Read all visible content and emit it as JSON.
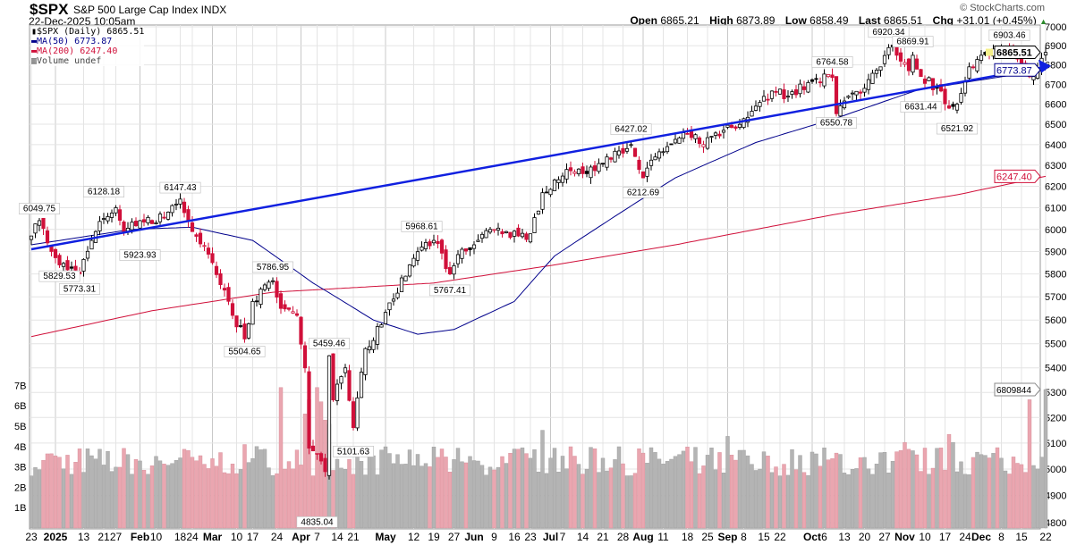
{
  "header": {
    "symbol": "$SPX",
    "name": "S&P 500 Large Cap Index",
    "exchange": "INDX",
    "date": "22-Dec-2025 10:05am",
    "brand": "© StockCharts.com",
    "open_label": "Open",
    "open": "6865.21",
    "high_label": "High",
    "high": "6873.89",
    "low_label": "Low",
    "low": "6858.49",
    "last_label": "Last",
    "last": "6865.51",
    "chg_label": "Chg",
    "chg": "+31.01 (+0.45%)"
  },
  "legend": {
    "price": "$SPX (Daily) 6865.51",
    "ma50": "MA(50) 6773.87",
    "ma200": "MA(200) 6247.40",
    "volume": "Volume undef"
  },
  "colors": {
    "up": "#000000",
    "down": "#d0103a",
    "ma50": "#00008b",
    "ma200": "#d0103a",
    "trend": "#1020e0",
    "vol_up": "#b4b4b4",
    "vol_down": "#eaa6b0"
  },
  "chart_data": {
    "type": "candlestick",
    "title": "$SPX (Daily)",
    "price_ylim": [
      4800,
      7000
    ],
    "price_scale": "log",
    "price_ticks": [
      7000,
      6900,
      6800,
      6700,
      6600,
      6500,
      6400,
      6300,
      6200,
      6100,
      6000,
      5900,
      5800,
      5700,
      5600,
      5500,
      5400,
      5300,
      5200,
      5100,
      5000,
      4900,
      4800
    ],
    "volume_ticks": [
      "1B",
      "2B",
      "3B",
      "4B",
      "5B",
      "6B",
      "7B"
    ],
    "x_ticks": [
      {
        "label": "23",
        "i": 0
      },
      {
        "label": "2025",
        "i": 6,
        "bold": true
      },
      {
        "label": "13",
        "i": 13
      },
      {
        "label": "21",
        "i": 18
      },
      {
        "label": "27",
        "i": 21
      },
      {
        "label": "Feb",
        "i": 27,
        "bold": true
      },
      {
        "label": "10",
        "i": 31
      },
      {
        "label": "18",
        "i": 37
      },
      {
        "label": "24",
        "i": 40
      },
      {
        "label": "Mar",
        "i": 45,
        "bold": true
      },
      {
        "label": "10",
        "i": 51
      },
      {
        "label": "17",
        "i": 55
      },
      {
        "label": "24",
        "i": 61
      },
      {
        "label": "Apr",
        "i": 67,
        "bold": true
      },
      {
        "label": "7",
        "i": 71
      },
      {
        "label": "14",
        "i": 76
      },
      {
        "label": "21",
        "i": 80
      },
      {
        "label": "May",
        "i": 88,
        "bold": true
      },
      {
        "label": "12",
        "i": 95
      },
      {
        "label": "19",
        "i": 100
      },
      {
        "label": "27",
        "i": 105
      },
      {
        "label": "Jun",
        "i": 110,
        "bold": true
      },
      {
        "label": "9",
        "i": 115
      },
      {
        "label": "16",
        "i": 120
      },
      {
        "label": "23",
        "i": 124
      },
      {
        "label": "Jul",
        "i": 129,
        "bold": true
      },
      {
        "label": "7",
        "i": 132
      },
      {
        "label": "14",
        "i": 137
      },
      {
        "label": "21",
        "i": 142
      },
      {
        "label": "28",
        "i": 147
      },
      {
        "label": "Aug",
        "i": 152,
        "bold": true
      },
      {
        "label": "11",
        "i": 157
      },
      {
        "label": "18",
        "i": 163
      },
      {
        "label": "25",
        "i": 168
      },
      {
        "label": "Sep",
        "i": 173,
        "bold": true
      },
      {
        "label": "8",
        "i": 177
      },
      {
        "label": "15",
        "i": 182
      },
      {
        "label": "22",
        "i": 186
      },
      {
        "label": "Oct",
        "i": 194,
        "bold": true
      },
      {
        "label": "6",
        "i": 197
      },
      {
        "label": "13",
        "i": 202
      },
      {
        "label": "20",
        "i": 207
      },
      {
        "label": "27",
        "i": 212
      },
      {
        "label": "Nov",
        "i": 217,
        "bold": true
      },
      {
        "label": "10",
        "i": 222
      },
      {
        "label": "17",
        "i": 227
      },
      {
        "label": "24",
        "i": 232
      },
      {
        "label": "Dec",
        "i": 236,
        "bold": true
      },
      {
        "label": "8",
        "i": 241
      },
      {
        "label": "15",
        "i": 246
      },
      {
        "label": "22",
        "i": 252
      }
    ],
    "close_keypoints": [
      [
        0,
        5970
      ],
      [
        2,
        6040
      ],
      [
        5,
        5900
      ],
      [
        7,
        5840
      ],
      [
        12,
        5800
      ],
      [
        15,
        5950
      ],
      [
        18,
        6050
      ],
      [
        21,
        6100
      ],
      [
        23,
        5990
      ],
      [
        27,
        6040
      ],
      [
        31,
        6030
      ],
      [
        35,
        6110
      ],
      [
        37,
        6140
      ],
      [
        40,
        5990
      ],
      [
        45,
        5850
      ],
      [
        50,
        5620
      ],
      [
        53,
        5520
      ],
      [
        55,
        5680
      ],
      [
        60,
        5770
      ],
      [
        62,
        5650
      ],
      [
        66,
        5620
      ],
      [
        68,
        5400
      ],
      [
        69,
        5080
      ],
      [
        71,
        5060
      ],
      [
        73,
        4990
      ],
      [
        74,
        5450
      ],
      [
        75,
        5270
      ],
      [
        78,
        5400
      ],
      [
        80,
        5160
      ],
      [
        83,
        5480
      ],
      [
        87,
        5580
      ],
      [
        90,
        5690
      ],
      [
        94,
        5840
      ],
      [
        97,
        5920
      ],
      [
        100,
        5950
      ],
      [
        104,
        5800
      ],
      [
        107,
        5910
      ],
      [
        110,
        5930
      ],
      [
        114,
        6000
      ],
      [
        118,
        5990
      ],
      [
        121,
        5970
      ],
      [
        124,
        5980
      ],
      [
        127,
        6170
      ],
      [
        130,
        6230
      ],
      [
        133,
        6280
      ],
      [
        138,
        6260
      ],
      [
        143,
        6340
      ],
      [
        149,
        6400
      ],
      [
        152,
        6240
      ],
      [
        155,
        6340
      ],
      [
        158,
        6390
      ],
      [
        163,
        6450
      ],
      [
        167,
        6400
      ],
      [
        172,
        6470
      ],
      [
        175,
        6480
      ],
      [
        180,
        6590
      ],
      [
        185,
        6660
      ],
      [
        188,
        6640
      ],
      [
        194,
        6715
      ],
      [
        198,
        6750
      ],
      [
        199,
        6735
      ],
      [
        200,
        6552
      ],
      [
        203,
        6640
      ],
      [
        207,
        6680
      ],
      [
        211,
        6790
      ],
      [
        213,
        6890
      ],
      [
        215,
        6850
      ],
      [
        218,
        6770
      ],
      [
        219,
        6850
      ],
      [
        221,
        6740
      ],
      [
        225,
        6680
      ],
      [
        228,
        6580
      ],
      [
        230,
        6600
      ],
      [
        233,
        6790
      ],
      [
        236,
        6850
      ],
      [
        240,
        6860
      ],
      [
        243,
        6890
      ],
      [
        245,
        6830
      ],
      [
        249,
        6740
      ],
      [
        251,
        6834
      ],
      [
        252,
        6865
      ]
    ],
    "ma50_keypoints": [
      [
        0,
        5930
      ],
      [
        25,
        6000
      ],
      [
        40,
        6010
      ],
      [
        55,
        5950
      ],
      [
        70,
        5760
      ],
      [
        85,
        5600
      ],
      [
        96,
        5540
      ],
      [
        105,
        5560
      ],
      [
        120,
        5680
      ],
      [
        130,
        5880
      ],
      [
        145,
        6060
      ],
      [
        160,
        6240
      ],
      [
        180,
        6410
      ],
      [
        200,
        6530
      ],
      [
        220,
        6670
      ],
      [
        235,
        6720
      ],
      [
        252,
        6774
      ]
    ],
    "ma200_keypoints": [
      [
        0,
        5530
      ],
      [
        30,
        5640
      ],
      [
        60,
        5720
      ],
      [
        100,
        5760
      ],
      [
        130,
        5840
      ],
      [
        160,
        5930
      ],
      [
        200,
        6070
      ],
      [
        230,
        6160
      ],
      [
        252,
        6247
      ]
    ],
    "volume_base_billions": 3.2,
    "volume_spikes": [
      {
        "i": 53,
        "v": 4.1
      },
      {
        "i": 56,
        "v": 4.0
      },
      {
        "i": 62,
        "v": 6.9
      },
      {
        "i": 68,
        "v": 5.6
      },
      {
        "i": 69,
        "v": 6.3
      },
      {
        "i": 71,
        "v": 6.9
      },
      {
        "i": 72,
        "v": 6.2
      },
      {
        "i": 73,
        "v": 5.3
      },
      {
        "i": 74,
        "v": 5.1
      },
      {
        "i": 127,
        "v": 4.8
      },
      {
        "i": 173,
        "v": 4.5
      },
      {
        "i": 217,
        "v": 4.2
      },
      {
        "i": 228,
        "v": 4.6
      },
      {
        "i": 229,
        "v": 4.2
      },
      {
        "i": 248,
        "v": 6.3
      },
      {
        "i": 250,
        "v": 2.9
      },
      {
        "i": 252,
        "v": 6.8
      }
    ],
    "annotations": [
      {
        "text": "6049.75",
        "i": 2,
        "price": 6049.75,
        "pos": "above"
      },
      {
        "text": "5829.53",
        "i": 7,
        "price": 5829.53,
        "pos": "below"
      },
      {
        "text": "5773.31",
        "i": 12,
        "price": 5773.31,
        "pos": "below"
      },
      {
        "text": "6128.18",
        "i": 18,
        "price": 6128.18,
        "pos": "above"
      },
      {
        "text": "5923.93",
        "i": 27,
        "price": 5923.93,
        "pos": "below"
      },
      {
        "text": "6147.43",
        "i": 37,
        "price": 6147.43,
        "pos": "above"
      },
      {
        "text": "5504.65",
        "i": 53,
        "price": 5504.65,
        "pos": "below"
      },
      {
        "text": "5786.95",
        "i": 60,
        "price": 5786.95,
        "pos": "above"
      },
      {
        "text": "4835.04",
        "i": 71,
        "price": 4835.04,
        "pos": "below"
      },
      {
        "text": "5459.46",
        "i": 74,
        "price": 5459.46,
        "pos": "above"
      },
      {
        "text": "5101.63",
        "i": 80,
        "price": 5101.63,
        "pos": "below"
      },
      {
        "text": "5968.61",
        "i": 97,
        "price": 5968.61,
        "pos": "above"
      },
      {
        "text": "5767.41",
        "i": 104,
        "price": 5767.41,
        "pos": "below"
      },
      {
        "text": "6427.02",
        "i": 149,
        "price": 6427.02,
        "pos": "above"
      },
      {
        "text": "6212.69",
        "i": 152,
        "price": 6212.69,
        "pos": "below"
      },
      {
        "text": "6764.58",
        "i": 199,
        "price": 6764.58,
        "pos": "above"
      },
      {
        "text": "6550.78",
        "i": 200,
        "price": 6550.78,
        "pos": "below"
      },
      {
        "text": "6920.34",
        "i": 213,
        "price": 6920.34,
        "pos": "above"
      },
      {
        "text": "6869.91",
        "i": 219,
        "price": 6869.91,
        "pos": "above"
      },
      {
        "text": "6631.44",
        "i": 221,
        "price": 6631.44,
        "pos": "below"
      },
      {
        "text": "6521.92",
        "i": 230,
        "price": 6521.92,
        "pos": "below"
      },
      {
        "text": "6903.46",
        "i": 243,
        "price": 6903.46,
        "pos": "above"
      }
    ],
    "trendline": {
      "start": [
        0,
        5910
      ],
      "end": [
        252,
        6790
      ]
    },
    "right_tags": [
      {
        "text": "6865.51",
        "price": 6865.51,
        "color": "#000000"
      },
      {
        "text": "6773.87",
        "price": 6773.87,
        "color": "#00008b"
      },
      {
        "text": "6247.40",
        "price": 6247.4,
        "color": "#d0103a"
      }
    ],
    "volume_tag": {
      "text": "6809844",
      "v": 6.8
    }
  }
}
